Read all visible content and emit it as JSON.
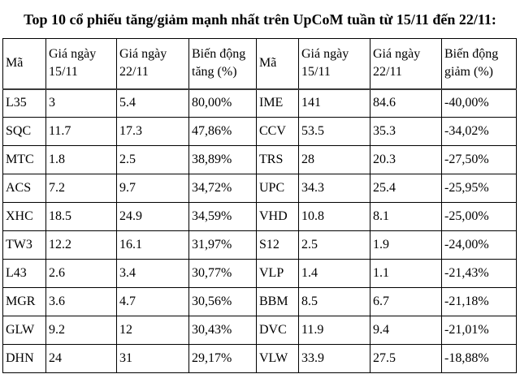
{
  "page": {
    "title": "Top 10 cổ phiếu tăng/giảm mạnh nhất trên UpCoM tuần từ 15/11 đến 22/11:"
  },
  "colors": {
    "background": "#ffffff",
    "text": "#000000",
    "grid_border": "#000000"
  },
  "table": {
    "headers": [
      "Mã",
      "Giá ngày 15/11",
      "Giá ngày 22/11",
      "Biến động tăng (%)",
      "Mã",
      "Giá ngày 15/11",
      "Giá ngày 22/11",
      "Biến động giảm (%)"
    ],
    "rows": [
      [
        "L35",
        "3",
        "5.4",
        "80,00%",
        "IME",
        "141",
        "84.6",
        "-40,00%"
      ],
      [
        "SQC",
        "11.7",
        "17.3",
        "47,86%",
        "CCV",
        "53.5",
        "35.3",
        "-34,02%"
      ],
      [
        "MTC",
        "1.8",
        "2.5",
        "38,89%",
        "TRS",
        "28",
        "20.3",
        "-27,50%"
      ],
      [
        "ACS",
        "7.2",
        "9.7",
        "34,72%",
        "UPC",
        "34.3",
        "25.4",
        "-25,95%"
      ],
      [
        "XHC",
        "18.5",
        "24.9",
        "34,59%",
        "VHD",
        "10.8",
        "8.1",
        "-25,00%"
      ],
      [
        "TW3",
        "12.2",
        "16.1",
        "31,97%",
        "S12",
        "2.5",
        "1.9",
        "-24,00%"
      ],
      [
        "L43",
        "2.6",
        "3.4",
        "30,77%",
        "VLP",
        "1.4",
        "1.1",
        "-21,43%"
      ],
      [
        "MGR",
        "3.6",
        "4.7",
        "30,56%",
        "BBM",
        "8.5",
        "6.7",
        "-21,18%"
      ],
      [
        "GLW",
        "9.2",
        "12",
        "30,43%",
        "DVC",
        "11.9",
        "9.4",
        "-21,01%"
      ],
      [
        "DHN",
        "24",
        "31",
        "29,17%",
        "VLW",
        "33.9",
        "27.5",
        "-18,88%"
      ]
    ]
  }
}
